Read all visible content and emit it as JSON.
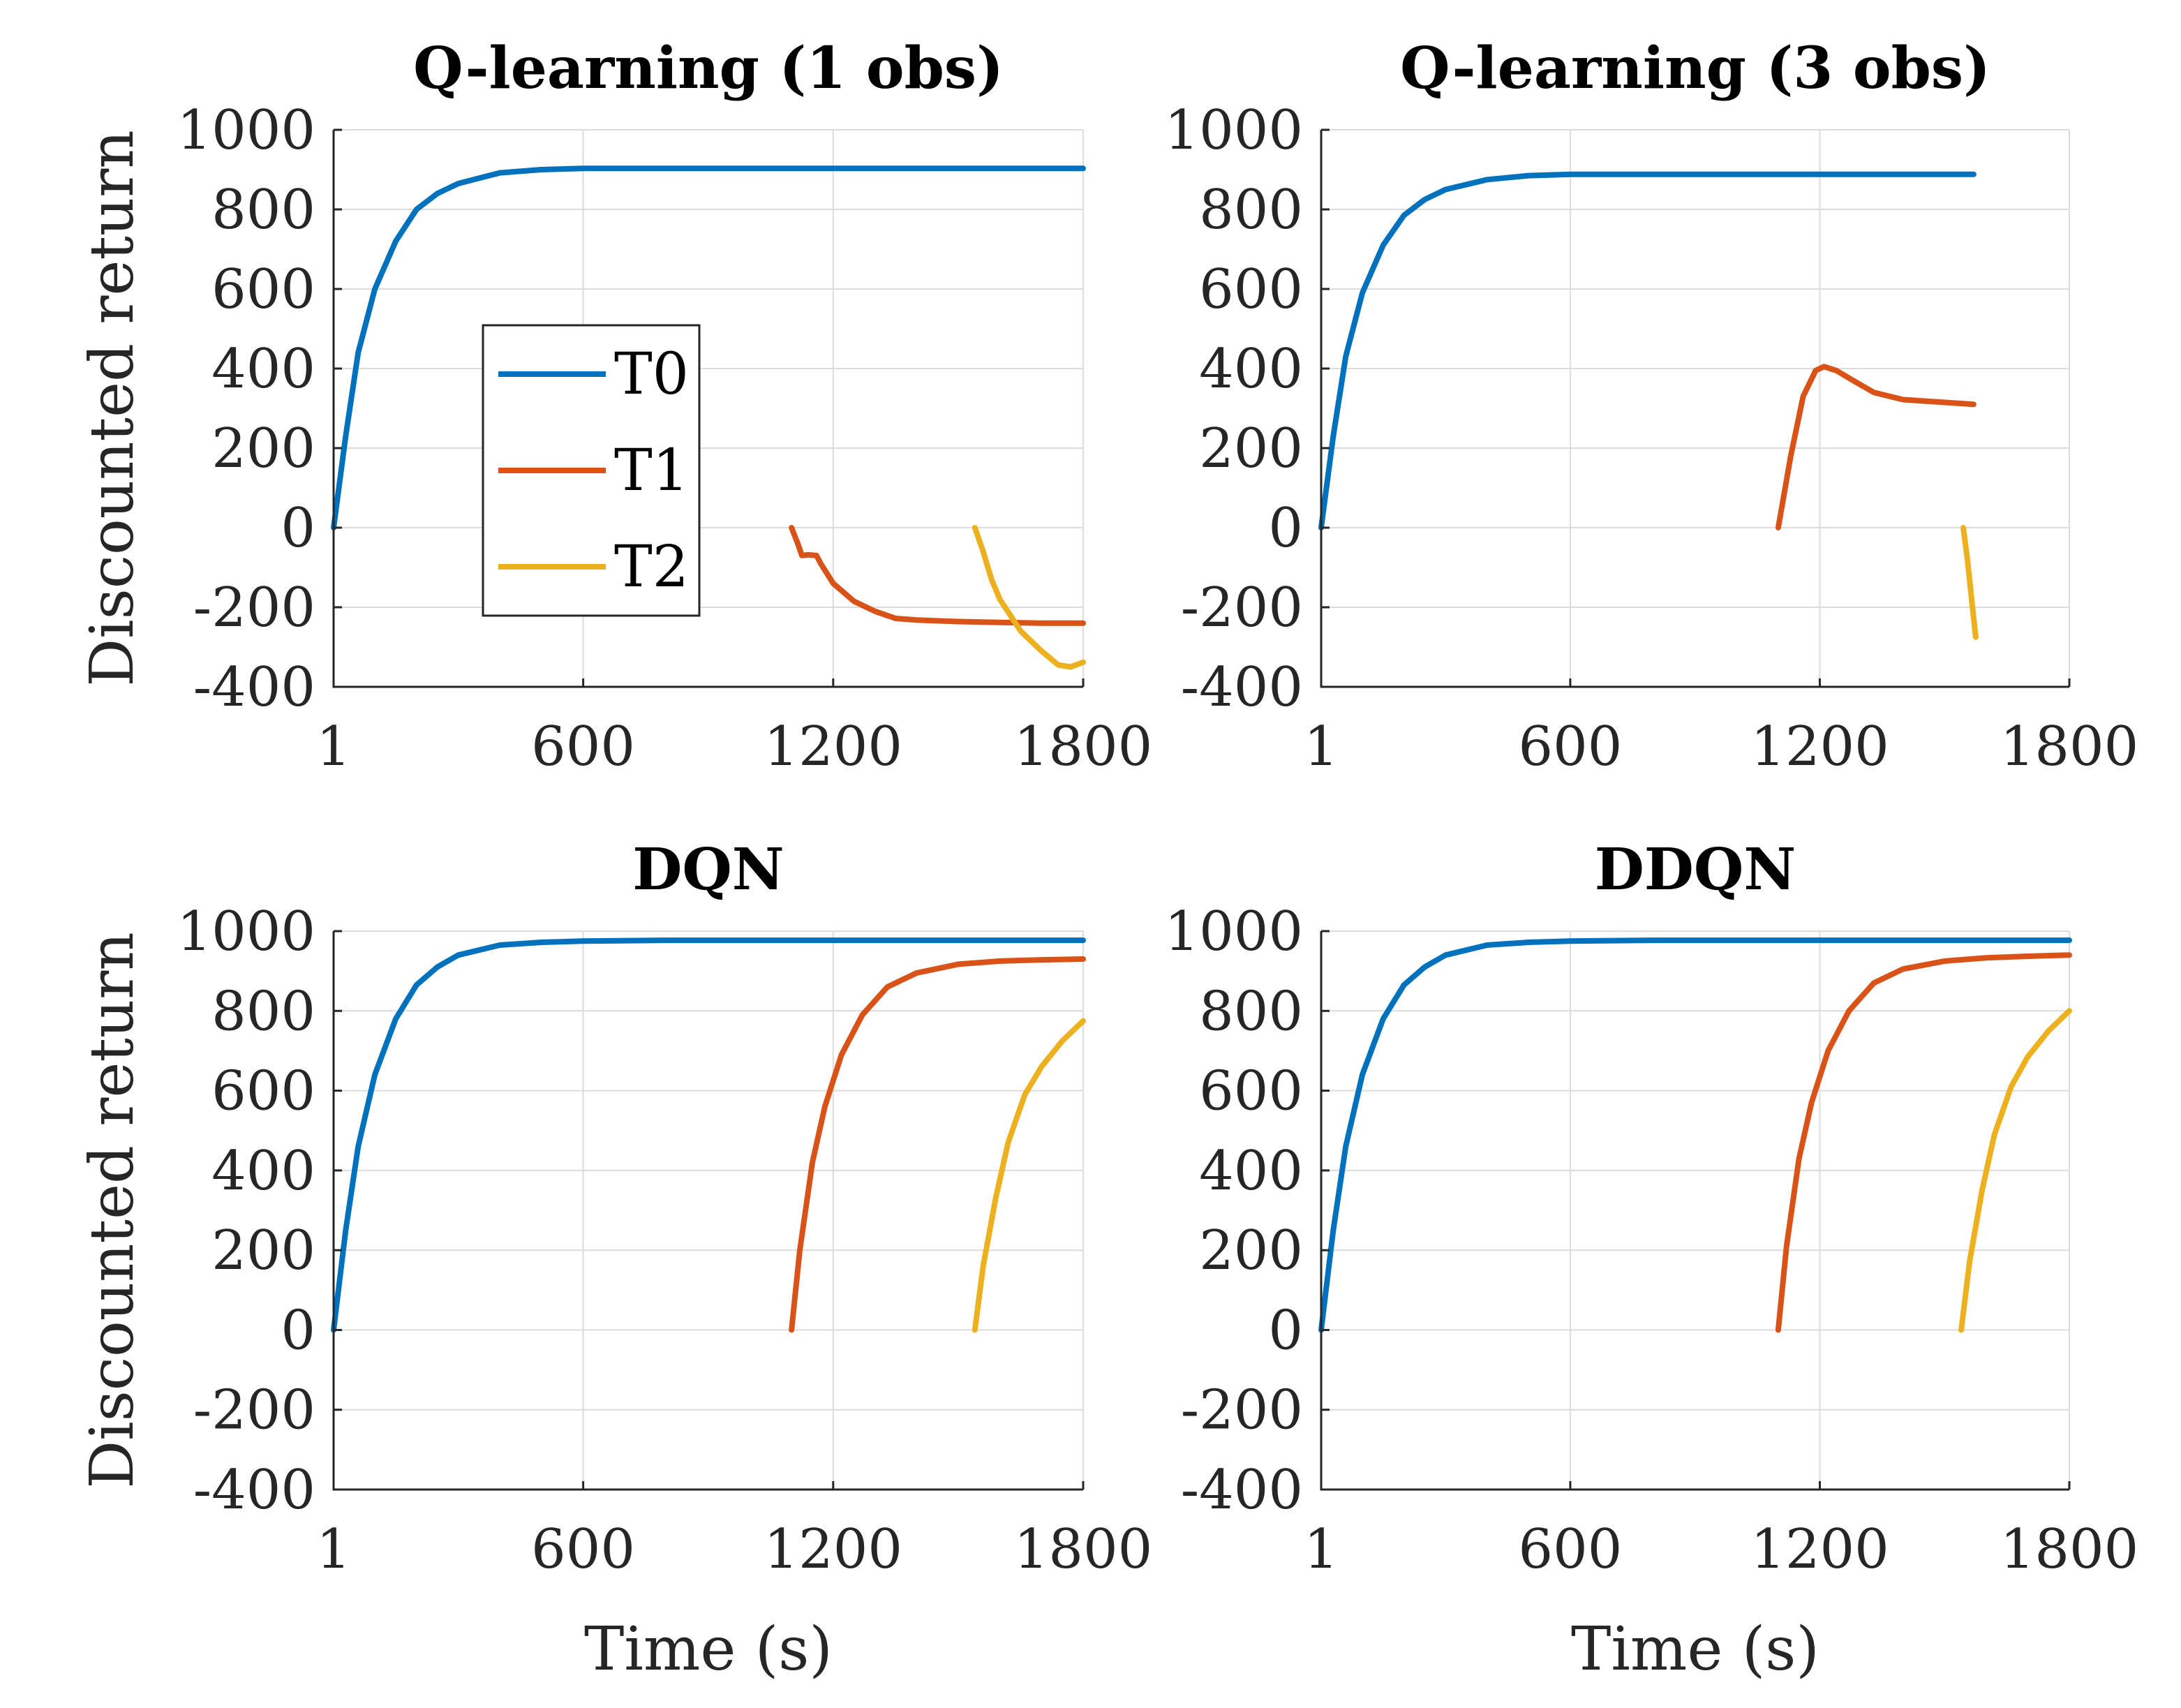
{
  "chart_data": [
    {
      "type": "line",
      "title": "Q-learning (1 obs)",
      "xlabel": "",
      "ylabel": "Discounted return",
      "xlim": [
        1,
        1800
      ],
      "ylim": [
        -400,
        1000
      ],
      "xticks": [
        1,
        600,
        1200,
        1800
      ],
      "yticks": [
        1000,
        800,
        600,
        400,
        200,
        0,
        -200,
        -400
      ],
      "grid": true,
      "legend": {
        "entries": [
          "T0",
          "T1",
          "T2"
        ],
        "placement": "center-left"
      },
      "series": [
        {
          "name": "T0",
          "color": "#0072BD",
          "x": [
            1,
            30,
            60,
            100,
            150,
            200,
            250,
            300,
            400,
            500,
            600,
            800,
            1200,
            1800
          ],
          "y": [
            0,
            230,
            440,
            600,
            720,
            800,
            840,
            865,
            892,
            900,
            903,
            903,
            903,
            903
          ]
        },
        {
          "name": "T1",
          "color": "#D95319",
          "x": [
            1100,
            1115,
            1125,
            1140,
            1160,
            1170,
            1200,
            1250,
            1300,
            1350,
            1400,
            1500,
            1600,
            1700,
            1800
          ],
          "y": [
            0,
            -40,
            -70,
            -68,
            -70,
            -90,
            -140,
            -185,
            -210,
            -228,
            -232,
            -236,
            -238,
            -240,
            -240
          ]
        },
        {
          "name": "T2",
          "color": "#EDB120",
          "x": [
            1540,
            1560,
            1580,
            1600,
            1650,
            1700,
            1740,
            1770,
            1800
          ],
          "y": [
            0,
            -60,
            -130,
            -180,
            -260,
            -310,
            -345,
            -350,
            -338
          ]
        }
      ]
    },
    {
      "type": "line",
      "title": "Q-learning (3 obs)",
      "xlabel": "",
      "ylabel": "",
      "xlim": [
        1,
        1800
      ],
      "ylim": [
        -400,
        1000
      ],
      "xticks": [
        1,
        600,
        1200,
        1800
      ],
      "yticks": [
        1000,
        800,
        600,
        400,
        200,
        0,
        -200,
        -400
      ],
      "grid": true,
      "series": [
        {
          "name": "T0",
          "color": "#0072BD",
          "x": [
            1,
            30,
            60,
            100,
            150,
            200,
            250,
            300,
            400,
            500,
            600,
            800,
            1200,
            1570
          ],
          "y": [
            0,
            230,
            430,
            590,
            710,
            785,
            825,
            850,
            875,
            885,
            888,
            888,
            888,
            888
          ]
        },
        {
          "name": "T1",
          "color": "#D95319",
          "x": [
            1100,
            1130,
            1160,
            1190,
            1210,
            1240,
            1280,
            1330,
            1400,
            1500,
            1570
          ],
          "y": [
            0,
            180,
            330,
            395,
            405,
            395,
            370,
            340,
            322,
            315,
            310
          ]
        },
        {
          "name": "T2",
          "color": "#EDB120",
          "x": [
            1545,
            1555,
            1565,
            1575
          ],
          "y": [
            0,
            -80,
            -180,
            -275
          ]
        }
      ]
    },
    {
      "type": "line",
      "title": "DQN",
      "xlabel": "Time (s)",
      "ylabel": "Discounted return",
      "xlim": [
        1,
        1800
      ],
      "ylim": [
        -400,
        1000
      ],
      "xticks": [
        1,
        600,
        1200,
        1800
      ],
      "yticks": [
        1000,
        800,
        600,
        400,
        200,
        0,
        -200,
        -400
      ],
      "grid": true,
      "series": [
        {
          "name": "T0",
          "color": "#0072BD",
          "x": [
            1,
            30,
            60,
            100,
            150,
            200,
            250,
            300,
            400,
            500,
            600,
            800,
            1200,
            1800
          ],
          "y": [
            0,
            250,
            460,
            640,
            780,
            865,
            910,
            940,
            965,
            972,
            975,
            977,
            977,
            977
          ]
        },
        {
          "name": "T1",
          "color": "#D95319",
          "x": [
            1100,
            1120,
            1150,
            1180,
            1220,
            1270,
            1330,
            1400,
            1500,
            1600,
            1700,
            1800
          ],
          "y": [
            0,
            200,
            420,
            560,
            690,
            790,
            860,
            895,
            917,
            925,
            928,
            930
          ]
        },
        {
          "name": "T2",
          "color": "#EDB120",
          "x": [
            1540,
            1560,
            1590,
            1620,
            1660,
            1700,
            1750,
            1800
          ],
          "y": [
            0,
            160,
            330,
            470,
            590,
            660,
            725,
            775
          ]
        }
      ]
    },
    {
      "type": "line",
      "title": "DDQN",
      "xlabel": "Time (s)",
      "ylabel": "",
      "xlim": [
        1,
        1800
      ],
      "ylim": [
        -400,
        1000
      ],
      "xticks": [
        1,
        600,
        1200,
        1800
      ],
      "yticks": [
        1000,
        800,
        600,
        400,
        200,
        0,
        -200,
        -400
      ],
      "grid": true,
      "series": [
        {
          "name": "T0",
          "color": "#0072BD",
          "x": [
            1,
            30,
            60,
            100,
            150,
            200,
            250,
            300,
            400,
            500,
            600,
            800,
            1200,
            1800
          ],
          "y": [
            0,
            250,
            460,
            640,
            780,
            865,
            910,
            940,
            965,
            972,
            975,
            977,
            977,
            977
          ]
        },
        {
          "name": "T1",
          "color": "#D95319",
          "x": [
            1100,
            1120,
            1150,
            1180,
            1220,
            1270,
            1330,
            1400,
            1500,
            1600,
            1700,
            1800
          ],
          "y": [
            0,
            210,
            430,
            570,
            700,
            800,
            870,
            905,
            925,
            933,
            937,
            940
          ]
        },
        {
          "name": "T2",
          "color": "#EDB120",
          "x": [
            1540,
            1560,
            1590,
            1620,
            1660,
            1700,
            1750,
            1800
          ],
          "y": [
            0,
            170,
            350,
            490,
            610,
            685,
            750,
            800
          ]
        }
      ]
    }
  ]
}
